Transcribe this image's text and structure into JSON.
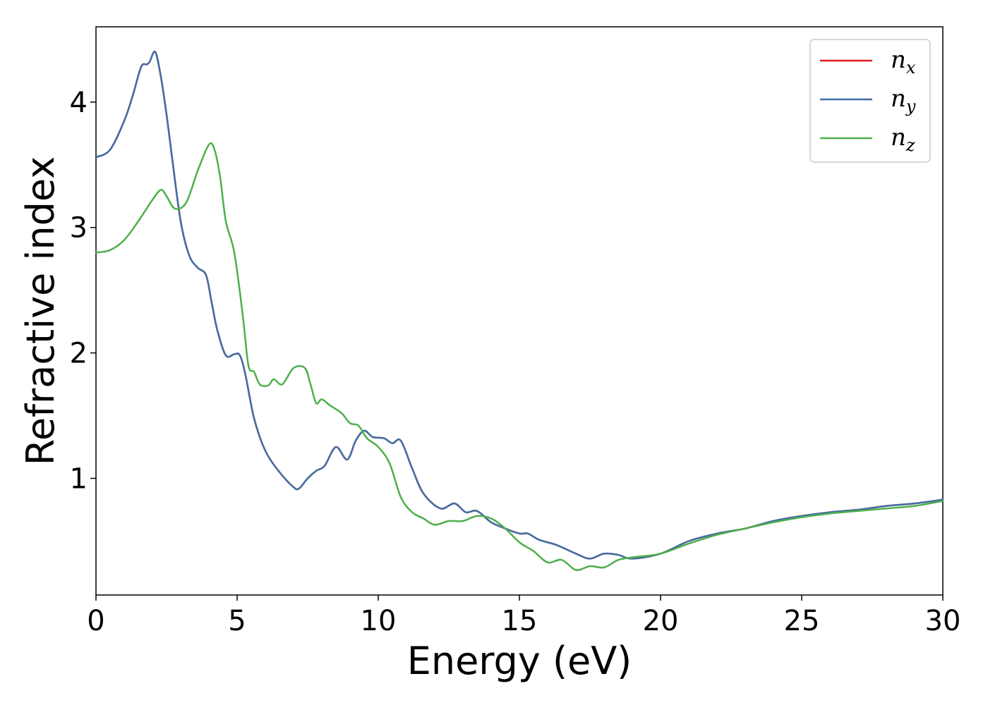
{
  "chart_data": {
    "type": "line",
    "title": "",
    "xlabel": "Energy (eV)",
    "ylabel": "Refractive index",
    "xlim": [
      0,
      30
    ],
    "ylim": [
      0.07,
      4.6
    ],
    "xticks": [
      0,
      5,
      10,
      15,
      20,
      25,
      30
    ],
    "yticks": [
      1,
      2,
      3,
      4
    ],
    "grid": false,
    "legend_position": "top-right",
    "series": [
      {
        "name": "n",
        "subscript": "x",
        "color": "#e41a1c",
        "x": [
          0,
          0.5,
          1,
          1.3,
          1.6,
          1.8,
          1.9,
          2.1,
          2.3,
          2.5,
          2.7,
          3,
          3.3,
          3.6,
          3.9,
          4.1,
          4.3,
          4.6,
          4.9,
          5.1,
          5.3,
          5.6,
          6,
          6.5,
          7,
          7.2,
          7.5,
          7.8,
          8.1,
          8.5,
          8.9,
          9.2,
          9.5,
          9.8,
          10.2,
          10.5,
          10.8,
          11.2,
          11.6,
          12.2,
          12.7,
          13.1,
          13.5,
          14,
          14.5,
          15,
          15.3,
          15.7,
          16.3,
          17,
          17.5,
          18,
          18.5,
          19,
          20,
          21,
          22,
          23,
          24,
          25,
          26,
          27,
          28,
          29,
          30
        ],
        "y": [
          3.56,
          3.62,
          3.85,
          4.05,
          4.28,
          4.3,
          4.32,
          4.4,
          4.2,
          3.9,
          3.55,
          3.05,
          2.78,
          2.68,
          2.62,
          2.4,
          2.18,
          1.98,
          1.99,
          1.98,
          1.82,
          1.48,
          1.22,
          1.05,
          0.93,
          0.92,
          1.0,
          1.06,
          1.1,
          1.25,
          1.15,
          1.3,
          1.38,
          1.33,
          1.32,
          1.28,
          1.3,
          1.08,
          0.88,
          0.76,
          0.8,
          0.73,
          0.74,
          0.65,
          0.6,
          0.56,
          0.56,
          0.51,
          0.47,
          0.4,
          0.36,
          0.4,
          0.39,
          0.36,
          0.4,
          0.5,
          0.56,
          0.6,
          0.66,
          0.7,
          0.73,
          0.75,
          0.78,
          0.8,
          0.83
        ]
      },
      {
        "name": "n",
        "subscript": "y",
        "color": "#3f6fa6",
        "x": [
          0,
          0.5,
          1,
          1.3,
          1.6,
          1.8,
          1.9,
          2.1,
          2.3,
          2.5,
          2.7,
          3,
          3.3,
          3.6,
          3.9,
          4.1,
          4.3,
          4.6,
          4.9,
          5.1,
          5.3,
          5.6,
          6,
          6.5,
          7,
          7.2,
          7.5,
          7.8,
          8.1,
          8.5,
          8.9,
          9.2,
          9.5,
          9.8,
          10.2,
          10.5,
          10.8,
          11.2,
          11.6,
          12.2,
          12.7,
          13.1,
          13.5,
          14,
          14.5,
          15,
          15.3,
          15.7,
          16.3,
          17,
          17.5,
          18,
          18.5,
          19,
          20,
          21,
          22,
          23,
          24,
          25,
          26,
          27,
          28,
          29,
          30
        ],
        "y": [
          3.56,
          3.62,
          3.85,
          4.05,
          4.28,
          4.3,
          4.32,
          4.4,
          4.2,
          3.9,
          3.55,
          3.05,
          2.78,
          2.68,
          2.62,
          2.4,
          2.18,
          1.98,
          1.99,
          1.98,
          1.82,
          1.48,
          1.22,
          1.05,
          0.93,
          0.92,
          1.0,
          1.06,
          1.1,
          1.25,
          1.15,
          1.3,
          1.38,
          1.33,
          1.32,
          1.28,
          1.3,
          1.08,
          0.88,
          0.76,
          0.8,
          0.73,
          0.74,
          0.65,
          0.6,
          0.56,
          0.56,
          0.51,
          0.47,
          0.4,
          0.36,
          0.4,
          0.39,
          0.36,
          0.4,
          0.5,
          0.56,
          0.6,
          0.66,
          0.7,
          0.73,
          0.75,
          0.78,
          0.8,
          0.83
        ]
      },
      {
        "name": "n",
        "subscript": "z",
        "color": "#4daf4a",
        "x": [
          0,
          0.5,
          1,
          1.5,
          2,
          2.3,
          2.5,
          2.8,
          3.2,
          3.6,
          4,
          4.2,
          4.4,
          4.6,
          4.9,
          5.2,
          5.4,
          5.6,
          5.8,
          6.1,
          6.3,
          6.6,
          7,
          7.4,
          7.6,
          7.8,
          8,
          8.3,
          8.7,
          9,
          9.3,
          9.6,
          10,
          10.4,
          10.8,
          11.2,
          11.6,
          12,
          12.5,
          13,
          13.5,
          14,
          14.5,
          15,
          15.5,
          16,
          16.5,
          17,
          17.5,
          18,
          18.5,
          19,
          20,
          21,
          22,
          23,
          24,
          25,
          26,
          27,
          28,
          29,
          30
        ],
        "y": [
          2.8,
          2.82,
          2.9,
          3.05,
          3.22,
          3.3,
          3.25,
          3.15,
          3.2,
          3.45,
          3.66,
          3.62,
          3.4,
          3.05,
          2.8,
          2.3,
          1.9,
          1.85,
          1.75,
          1.74,
          1.79,
          1.75,
          1.88,
          1.88,
          1.75,
          1.6,
          1.63,
          1.58,
          1.52,
          1.44,
          1.42,
          1.32,
          1.25,
          1.12,
          0.85,
          0.73,
          0.68,
          0.63,
          0.66,
          0.66,
          0.7,
          0.68,
          0.6,
          0.49,
          0.42,
          0.33,
          0.35,
          0.27,
          0.3,
          0.29,
          0.35,
          0.37,
          0.4,
          0.48,
          0.55,
          0.6,
          0.65,
          0.69,
          0.72,
          0.74,
          0.76,
          0.78,
          0.82
        ]
      }
    ]
  }
}
